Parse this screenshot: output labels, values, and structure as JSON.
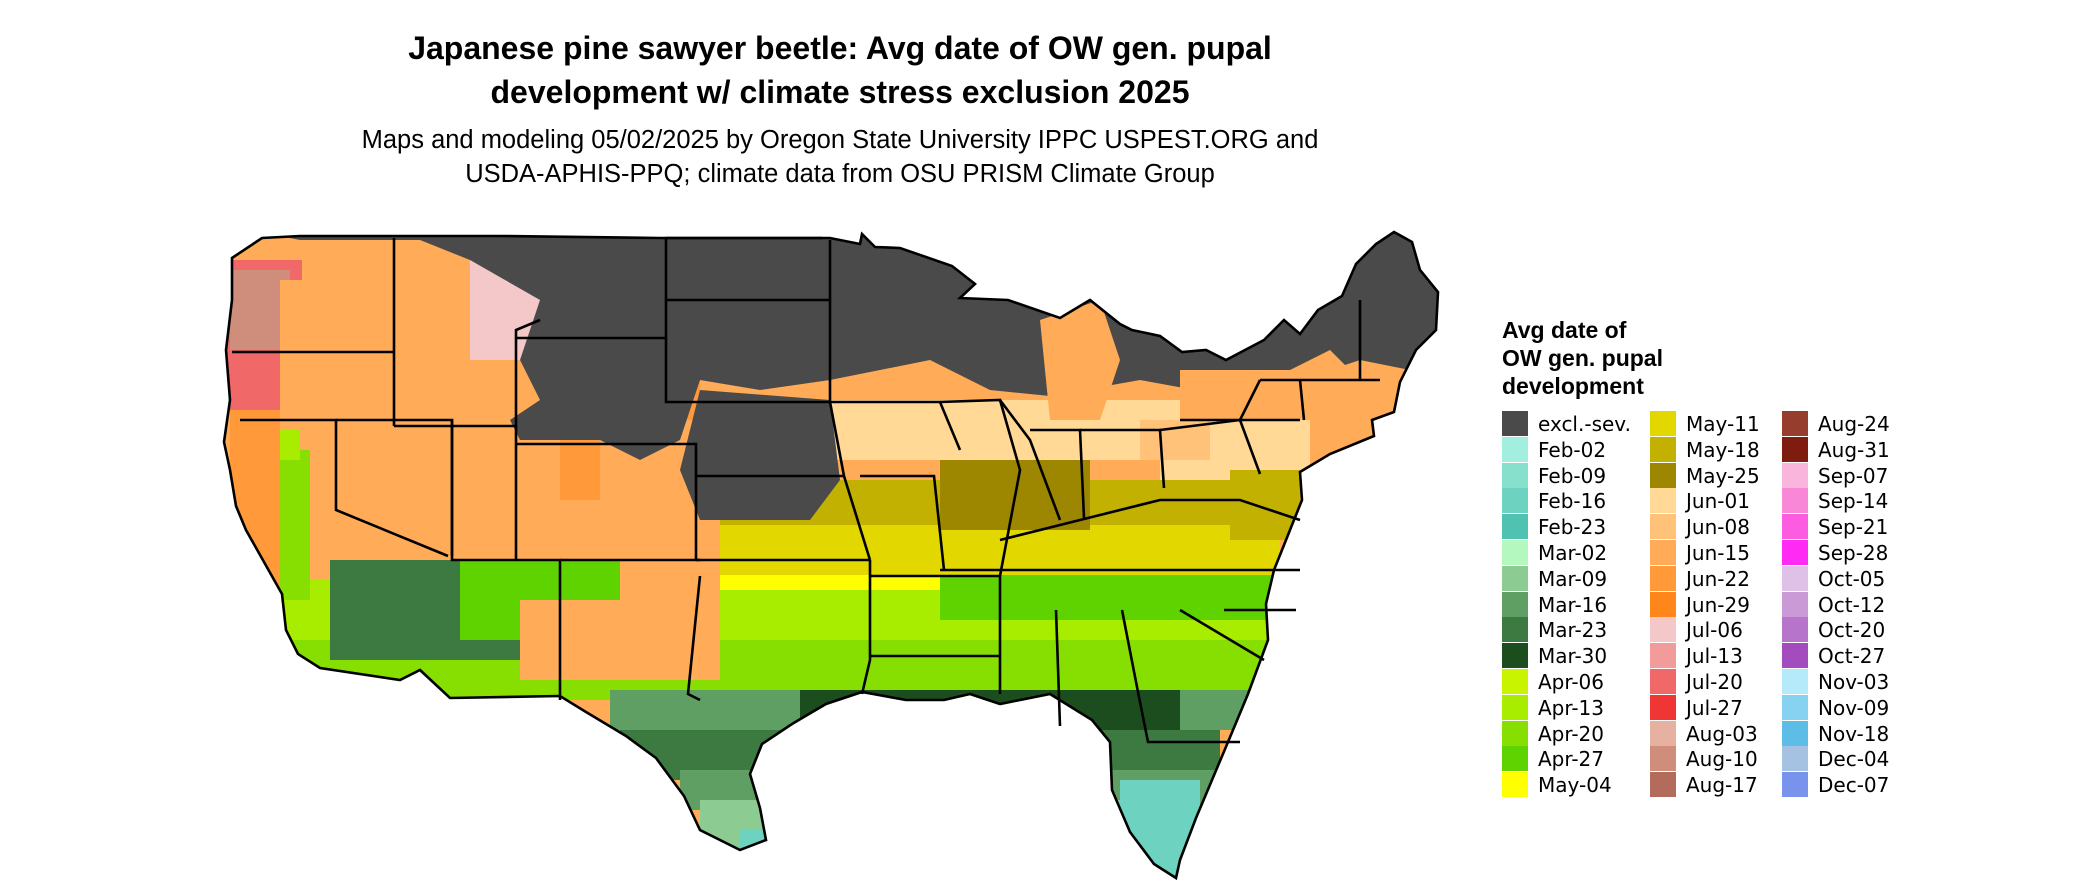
{
  "title_line1": "Japanese pine sawyer beetle: Avg date of OW gen. pupal",
  "title_line2": "development w/ climate stress exclusion 2025",
  "subtitle_line1": "Maps and modeling 05/02/2025 by Oregon State University IPPC USPEST.ORG and",
  "subtitle_line2": "USDA-APHIS-PPQ; climate data from OSU PRISM Climate Group",
  "legend": {
    "title_line1": "Avg date of",
    "title_line2": "OW gen. pupal",
    "title_line3": "development",
    "columns": [
      [
        {
          "label": "excl.-sev.",
          "color": "#4a4a4a"
        },
        {
          "label": "Feb-02",
          "color": "#a3efdf"
        },
        {
          "label": "Feb-09",
          "color": "#86e0cc"
        },
        {
          "label": "Feb-16",
          "color": "#6ed2c1"
        },
        {
          "label": "Feb-23",
          "color": "#4fc2b2"
        },
        {
          "label": "Mar-02",
          "color": "#b4f7bf"
        },
        {
          "label": "Mar-09",
          "color": "#8ccb92"
        },
        {
          "label": "Mar-16",
          "color": "#5f9f63"
        },
        {
          "label": "Mar-23",
          "color": "#3d7a42"
        },
        {
          "label": "Mar-30",
          "color": "#1c4d1e"
        },
        {
          "label": "Apr-06",
          "color": "#c9f400"
        },
        {
          "label": "Apr-13",
          "color": "#a8ec00"
        },
        {
          "label": "Apr-20",
          "color": "#86df00"
        },
        {
          "label": "Apr-27",
          "color": "#5fd300"
        },
        {
          "label": "May-04",
          "color": "#ffff00"
        }
      ],
      [
        {
          "label": "May-11",
          "color": "#e2d800"
        },
        {
          "label": "May-18",
          "color": "#c2b100"
        },
        {
          "label": "May-25",
          "color": "#9e8700"
        },
        {
          "label": "Jun-01",
          "color": "#ffd995"
        },
        {
          "label": "Jun-08",
          "color": "#ffc278"
        },
        {
          "label": "Jun-15",
          "color": "#ffab58"
        },
        {
          "label": "Jun-22",
          "color": "#ff993a"
        },
        {
          "label": "Jun-29",
          "color": "#ff861a"
        },
        {
          "label": "Jul-06",
          "color": "#f4c8c8"
        },
        {
          "label": "Jul-13",
          "color": "#f19b9b"
        },
        {
          "label": "Jul-20",
          "color": "#f06868"
        },
        {
          "label": "Jul-27",
          "color": "#f03535"
        },
        {
          "label": "Aug-03",
          "color": "#e7b1a2"
        },
        {
          "label": "Aug-10",
          "color": "#cf8d7c"
        },
        {
          "label": "Aug-17",
          "color": "#b36c5b"
        }
      ],
      [
        {
          "label": "Aug-24",
          "color": "#963d2d"
        },
        {
          "label": "Aug-31",
          "color": "#7e1c0f"
        },
        {
          "label": "Sep-07",
          "color": "#fab5dc"
        },
        {
          "label": "Sep-14",
          "color": "#f987d7"
        },
        {
          "label": "Sep-21",
          "color": "#fb5ce0"
        },
        {
          "label": "Sep-28",
          "color": "#ff2af3"
        },
        {
          "label": "Oct-05",
          "color": "#dfc0e7"
        },
        {
          "label": "Oct-12",
          "color": "#c99ad6"
        },
        {
          "label": "Oct-20",
          "color": "#b774cb"
        },
        {
          "label": "Oct-27",
          "color": "#a34cbd"
        },
        {
          "label": "Nov-03",
          "color": "#b5eafa"
        },
        {
          "label": "Nov-09",
          "color": "#86d2f0"
        },
        {
          "label": "Nov-18",
          "color": "#5ebde6"
        },
        {
          "label": "Dec-04",
          "color": "#a6c2e3"
        },
        {
          "label": "Dec-07",
          "color": "#7893eb"
        }
      ]
    ]
  }
}
